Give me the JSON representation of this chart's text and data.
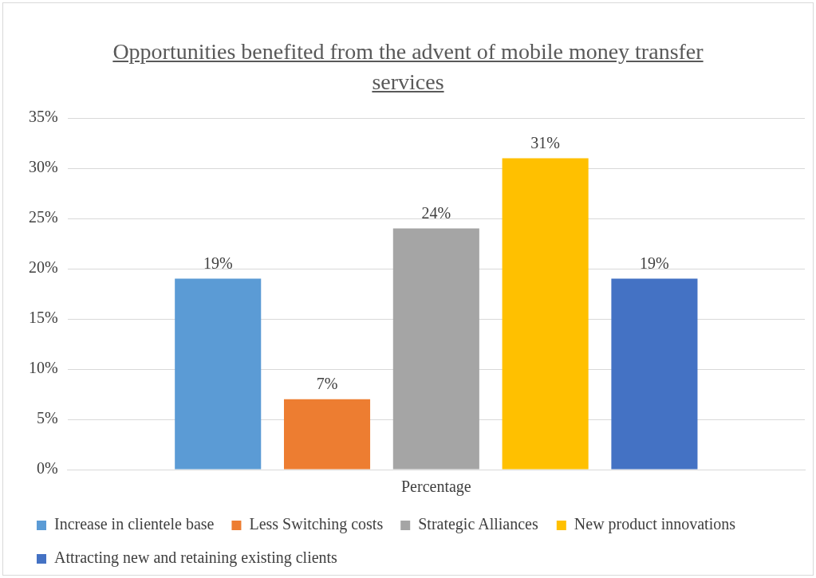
{
  "chart_data": {
    "type": "bar",
    "title": "Opportunities benefited from the advent of mobile money transfer services",
    "categories": [
      "Percentage"
    ],
    "series": [
      {
        "name": "Increase in clientele base",
        "color": "#5b9bd5",
        "values": [
          19
        ],
        "value_labels": [
          "19%"
        ]
      },
      {
        "name": "Less Switching costs",
        "color": "#ed7d31",
        "values": [
          7
        ],
        "value_labels": [
          "7%"
        ]
      },
      {
        "name": "Strategic Alliances",
        "color": "#a5a5a5",
        "values": [
          24
        ],
        "value_labels": [
          "24%"
        ]
      },
      {
        "name": "New product innovations",
        "color": "#ffc000",
        "values": [
          31
        ],
        "value_labels": [
          "31%"
        ]
      },
      {
        "name": "Attracting new and retaining existing clients",
        "color": "#4472c4",
        "values": [
          19
        ],
        "value_labels": [
          "19%"
        ]
      }
    ],
    "ylim": [
      0,
      35
    ],
    "yticks": [
      {
        "value": 0,
        "label": "0%"
      },
      {
        "value": 5,
        "label": "5%"
      },
      {
        "value": 10,
        "label": "10%"
      },
      {
        "value": 15,
        "label": "15%"
      },
      {
        "value": 20,
        "label": "20%"
      },
      {
        "value": 25,
        "label": "25%"
      },
      {
        "value": 30,
        "label": "30%"
      },
      {
        "value": 35,
        "label": "35%"
      }
    ],
    "grid": "y",
    "legend": "bottom"
  }
}
